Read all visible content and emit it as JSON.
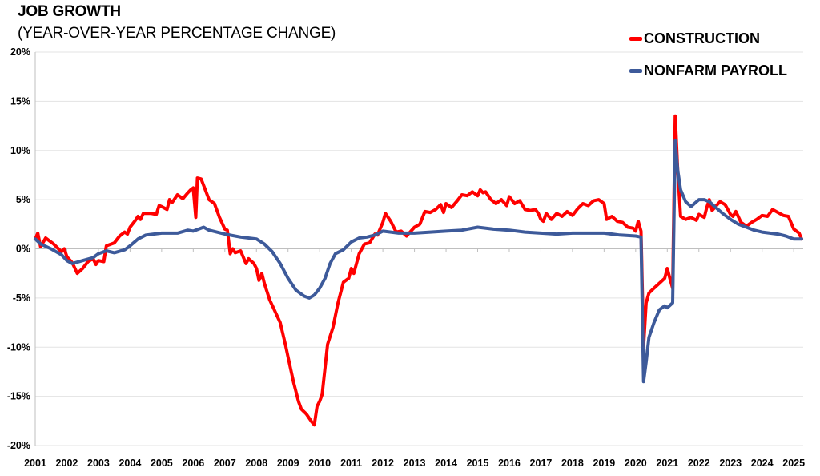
{
  "chart_data": {
    "type": "line",
    "title": "JOB GROWTH",
    "subtitle": "(YEAR-OVER-YEAR PERCENTAGE CHANGE)",
    "xlabel": "",
    "ylabel": "",
    "xlim": [
      2001.0,
      2025.3
    ],
    "ylim": [
      -20,
      20
    ],
    "y_ticks": [
      "20%",
      "15%",
      "10%",
      "5%",
      "0%",
      "-5%",
      "-10%",
      "-15%",
      "-20%"
    ],
    "y_tick_values": [
      20,
      15,
      10,
      5,
      0,
      -5,
      -10,
      -15,
      -20
    ],
    "x_ticks": [
      "2001",
      "2002",
      "2003",
      "2004",
      "2005",
      "2006",
      "2007",
      "2008",
      "2009",
      "2010",
      "2011",
      "2012",
      "2013",
      "2014",
      "2015",
      "2016",
      "2017",
      "2018",
      "2019",
      "2020",
      "2021",
      "2022",
      "2023",
      "2024",
      "2025"
    ],
    "grid": true,
    "legend_position": "top-right",
    "series": [
      {
        "name": "CONSTRUCTION",
        "color": "#ff0000",
        "points": [
          [
            2001.0,
            1.0
          ],
          [
            2001.08,
            1.6
          ],
          [
            2001.17,
            0.2
          ],
          [
            2001.33,
            1.1
          ],
          [
            2001.58,
            0.5
          ],
          [
            2001.83,
            -0.3
          ],
          [
            2001.92,
            0.0
          ],
          [
            2002.0,
            -0.8
          ],
          [
            2002.17,
            -1.4
          ],
          [
            2002.33,
            -2.5
          ],
          [
            2002.5,
            -2.0
          ],
          [
            2002.67,
            -1.3
          ],
          [
            2002.83,
            -1.0
          ],
          [
            2002.92,
            -1.6
          ],
          [
            2003.0,
            -1.2
          ],
          [
            2003.17,
            -1.3
          ],
          [
            2003.25,
            0.3
          ],
          [
            2003.5,
            0.6
          ],
          [
            2003.67,
            1.3
          ],
          [
            2003.83,
            1.7
          ],
          [
            2003.92,
            1.5
          ],
          [
            2004.0,
            2.2
          ],
          [
            2004.17,
            2.9
          ],
          [
            2004.25,
            3.3
          ],
          [
            2004.33,
            3.0
          ],
          [
            2004.42,
            3.6
          ],
          [
            2004.67,
            3.6
          ],
          [
            2004.83,
            3.5
          ],
          [
            2004.92,
            4.4
          ],
          [
            2005.0,
            4.3
          ],
          [
            2005.17,
            4.0
          ],
          [
            2005.25,
            5.0
          ],
          [
            2005.33,
            4.7
          ],
          [
            2005.5,
            5.5
          ],
          [
            2005.67,
            5.1
          ],
          [
            2005.83,
            5.7
          ],
          [
            2005.92,
            6.0
          ],
          [
            2006.0,
            6.2
          ],
          [
            2006.08,
            3.2
          ],
          [
            2006.13,
            7.2
          ],
          [
            2006.25,
            7.1
          ],
          [
            2006.5,
            5.0
          ],
          [
            2006.67,
            4.6
          ],
          [
            2006.83,
            3.2
          ],
          [
            2007.0,
            2.0
          ],
          [
            2007.08,
            1.9
          ],
          [
            2007.17,
            -0.5
          ],
          [
            2007.25,
            0.0
          ],
          [
            2007.33,
            -0.4
          ],
          [
            2007.5,
            -0.2
          ],
          [
            2007.67,
            -1.5
          ],
          [
            2007.75,
            -1.0
          ],
          [
            2007.92,
            -1.5
          ],
          [
            2008.0,
            -2.0
          ],
          [
            2008.08,
            -3.2
          ],
          [
            2008.17,
            -2.5
          ],
          [
            2008.25,
            -3.5
          ],
          [
            2008.42,
            -5.2
          ],
          [
            2008.58,
            -6.3
          ],
          [
            2008.75,
            -7.5
          ],
          [
            2008.92,
            -9.8
          ],
          [
            2009.0,
            -11.0
          ],
          [
            2009.17,
            -13.5
          ],
          [
            2009.33,
            -15.5
          ],
          [
            2009.42,
            -16.3
          ],
          [
            2009.58,
            -16.8
          ],
          [
            2009.75,
            -17.6
          ],
          [
            2009.83,
            -17.9
          ],
          [
            2009.92,
            -16.0
          ],
          [
            2010.0,
            -15.5
          ],
          [
            2010.08,
            -14.8
          ],
          [
            2010.25,
            -9.7
          ],
          [
            2010.42,
            -8.0
          ],
          [
            2010.58,
            -5.5
          ],
          [
            2010.75,
            -3.4
          ],
          [
            2010.92,
            -3.0
          ],
          [
            2011.0,
            -2.0
          ],
          [
            2011.08,
            -2.5
          ],
          [
            2011.25,
            -0.5
          ],
          [
            2011.42,
            0.5
          ],
          [
            2011.58,
            0.6
          ],
          [
            2011.75,
            1.5
          ],
          [
            2011.83,
            1.4
          ],
          [
            2012.0,
            2.7
          ],
          [
            2012.08,
            3.6
          ],
          [
            2012.25,
            2.8
          ],
          [
            2012.42,
            1.7
          ],
          [
            2012.58,
            1.8
          ],
          [
            2012.75,
            1.3
          ],
          [
            2012.83,
            1.6
          ],
          [
            2013.0,
            2.2
          ],
          [
            2013.17,
            2.5
          ],
          [
            2013.33,
            3.8
          ],
          [
            2013.5,
            3.7
          ],
          [
            2013.67,
            4.0
          ],
          [
            2013.83,
            4.5
          ],
          [
            2013.92,
            3.7
          ],
          [
            2014.0,
            4.6
          ],
          [
            2014.17,
            4.2
          ],
          [
            2014.33,
            4.8
          ],
          [
            2014.5,
            5.5
          ],
          [
            2014.67,
            5.4
          ],
          [
            2014.83,
            5.8
          ],
          [
            2015.0,
            5.4
          ],
          [
            2015.08,
            6.0
          ],
          [
            2015.17,
            5.7
          ],
          [
            2015.25,
            5.8
          ],
          [
            2015.42,
            5.0
          ],
          [
            2015.58,
            4.6
          ],
          [
            2015.75,
            5.0
          ],
          [
            2015.92,
            4.4
          ],
          [
            2016.0,
            5.3
          ],
          [
            2016.17,
            4.6
          ],
          [
            2016.33,
            4.9
          ],
          [
            2016.5,
            4.0
          ],
          [
            2016.67,
            3.9
          ],
          [
            2016.83,
            4.0
          ],
          [
            2016.92,
            3.6
          ],
          [
            2017.0,
            3.0
          ],
          [
            2017.08,
            2.8
          ],
          [
            2017.17,
            3.6
          ],
          [
            2017.33,
            3.0
          ],
          [
            2017.5,
            3.6
          ],
          [
            2017.67,
            3.3
          ],
          [
            2017.83,
            3.8
          ],
          [
            2018.0,
            3.4
          ],
          [
            2018.17,
            4.1
          ],
          [
            2018.33,
            4.6
          ],
          [
            2018.5,
            4.4
          ],
          [
            2018.67,
            4.9
          ],
          [
            2018.83,
            5.0
          ],
          [
            2019.0,
            4.6
          ],
          [
            2019.08,
            3.0
          ],
          [
            2019.25,
            3.3
          ],
          [
            2019.42,
            2.8
          ],
          [
            2019.58,
            2.7
          ],
          [
            2019.75,
            2.2
          ],
          [
            2019.92,
            2.1
          ],
          [
            2020.0,
            1.8
          ],
          [
            2020.08,
            2.8
          ],
          [
            2020.17,
            1.8
          ],
          [
            2020.25,
            -9.9
          ],
          [
            2020.33,
            -5.5
          ],
          [
            2020.42,
            -4.5
          ],
          [
            2020.58,
            -4.0
          ],
          [
            2020.75,
            -3.5
          ],
          [
            2020.92,
            -3.0
          ],
          [
            2021.0,
            -2.0
          ],
          [
            2021.08,
            -3.0
          ],
          [
            2021.17,
            -4.0
          ],
          [
            2021.25,
            13.5
          ],
          [
            2021.33,
            8.0
          ],
          [
            2021.42,
            3.3
          ],
          [
            2021.58,
            3.0
          ],
          [
            2021.75,
            3.2
          ],
          [
            2021.92,
            2.9
          ],
          [
            2022.0,
            3.5
          ],
          [
            2022.17,
            3.2
          ],
          [
            2022.25,
            4.2
          ],
          [
            2022.33,
            5.0
          ],
          [
            2022.42,
            3.9
          ],
          [
            2022.58,
            4.5
          ],
          [
            2022.67,
            4.8
          ],
          [
            2022.83,
            4.5
          ],
          [
            2023.0,
            3.5
          ],
          [
            2023.08,
            3.3
          ],
          [
            2023.17,
            3.8
          ],
          [
            2023.33,
            2.7
          ],
          [
            2023.5,
            2.3
          ],
          [
            2023.67,
            2.7
          ],
          [
            2023.83,
            3.0
          ],
          [
            2024.0,
            3.4
          ],
          [
            2024.17,
            3.3
          ],
          [
            2024.33,
            4.0
          ],
          [
            2024.5,
            3.7
          ],
          [
            2024.67,
            3.4
          ],
          [
            2024.83,
            3.3
          ],
          [
            2025.0,
            2.0
          ],
          [
            2025.17,
            1.6
          ],
          [
            2025.25,
            1.0
          ]
        ]
      },
      {
        "name": "NONFARM PAYROLL",
        "color": "#3d5a9a",
        "points": [
          [
            2001.0,
            1.0
          ],
          [
            2001.17,
            0.5
          ],
          [
            2001.5,
            0.0
          ],
          [
            2001.83,
            -0.6
          ],
          [
            2002.0,
            -1.2
          ],
          [
            2002.17,
            -1.5
          ],
          [
            2002.5,
            -1.2
          ],
          [
            2002.83,
            -0.9
          ],
          [
            2003.0,
            -0.5
          ],
          [
            2003.25,
            -0.2
          ],
          [
            2003.5,
            -0.4
          ],
          [
            2003.83,
            -0.1
          ],
          [
            2004.0,
            0.3
          ],
          [
            2004.25,
            1.0
          ],
          [
            2004.5,
            1.4
          ],
          [
            2005.0,
            1.6
          ],
          [
            2005.5,
            1.6
          ],
          [
            2005.83,
            1.9
          ],
          [
            2006.0,
            1.8
          ],
          [
            2006.17,
            2.0
          ],
          [
            2006.33,
            2.2
          ],
          [
            2006.5,
            1.9
          ],
          [
            2007.0,
            1.5
          ],
          [
            2007.5,
            1.2
          ],
          [
            2008.0,
            1.0
          ],
          [
            2008.25,
            0.5
          ],
          [
            2008.5,
            -0.3
          ],
          [
            2008.75,
            -1.5
          ],
          [
            2009.0,
            -3.0
          ],
          [
            2009.25,
            -4.2
          ],
          [
            2009.5,
            -4.8
          ],
          [
            2009.67,
            -5.0
          ],
          [
            2009.83,
            -4.7
          ],
          [
            2010.0,
            -4.0
          ],
          [
            2010.17,
            -3.0
          ],
          [
            2010.33,
            -1.5
          ],
          [
            2010.5,
            -0.5
          ],
          [
            2010.75,
            -0.1
          ],
          [
            2011.0,
            0.7
          ],
          [
            2011.25,
            1.1
          ],
          [
            2011.5,
            1.2
          ],
          [
            2011.75,
            1.4
          ],
          [
            2012.0,
            1.8
          ],
          [
            2012.25,
            1.7
          ],
          [
            2012.5,
            1.6
          ],
          [
            2013.0,
            1.6
          ],
          [
            2013.5,
            1.7
          ],
          [
            2014.0,
            1.8
          ],
          [
            2014.5,
            1.9
          ],
          [
            2015.0,
            2.2
          ],
          [
            2015.5,
            2.0
          ],
          [
            2016.0,
            1.9
          ],
          [
            2016.5,
            1.7
          ],
          [
            2017.0,
            1.6
          ],
          [
            2017.5,
            1.5
          ],
          [
            2018.0,
            1.6
          ],
          [
            2018.5,
            1.6
          ],
          [
            2019.0,
            1.6
          ],
          [
            2019.5,
            1.4
          ],
          [
            2020.0,
            1.3
          ],
          [
            2020.17,
            1.2
          ],
          [
            2020.25,
            -13.5
          ],
          [
            2020.33,
            -11.5
          ],
          [
            2020.42,
            -9.0
          ],
          [
            2020.58,
            -7.5
          ],
          [
            2020.75,
            -6.2
          ],
          [
            2020.92,
            -5.8
          ],
          [
            2021.0,
            -6.0
          ],
          [
            2021.17,
            -5.5
          ],
          [
            2021.25,
            11.0
          ],
          [
            2021.33,
            8.0
          ],
          [
            2021.42,
            6.0
          ],
          [
            2021.58,
            4.8
          ],
          [
            2021.75,
            4.3
          ],
          [
            2022.0,
            5.0
          ],
          [
            2022.17,
            5.0
          ],
          [
            2022.33,
            4.8
          ],
          [
            2022.5,
            4.3
          ],
          [
            2022.75,
            3.6
          ],
          [
            2023.0,
            3.0
          ],
          [
            2023.25,
            2.5
          ],
          [
            2023.5,
            2.2
          ],
          [
            2023.75,
            1.9
          ],
          [
            2024.0,
            1.7
          ],
          [
            2024.25,
            1.6
          ],
          [
            2024.5,
            1.5
          ],
          [
            2024.75,
            1.3
          ],
          [
            2025.0,
            1.0
          ],
          [
            2025.25,
            1.0
          ]
        ]
      }
    ]
  }
}
